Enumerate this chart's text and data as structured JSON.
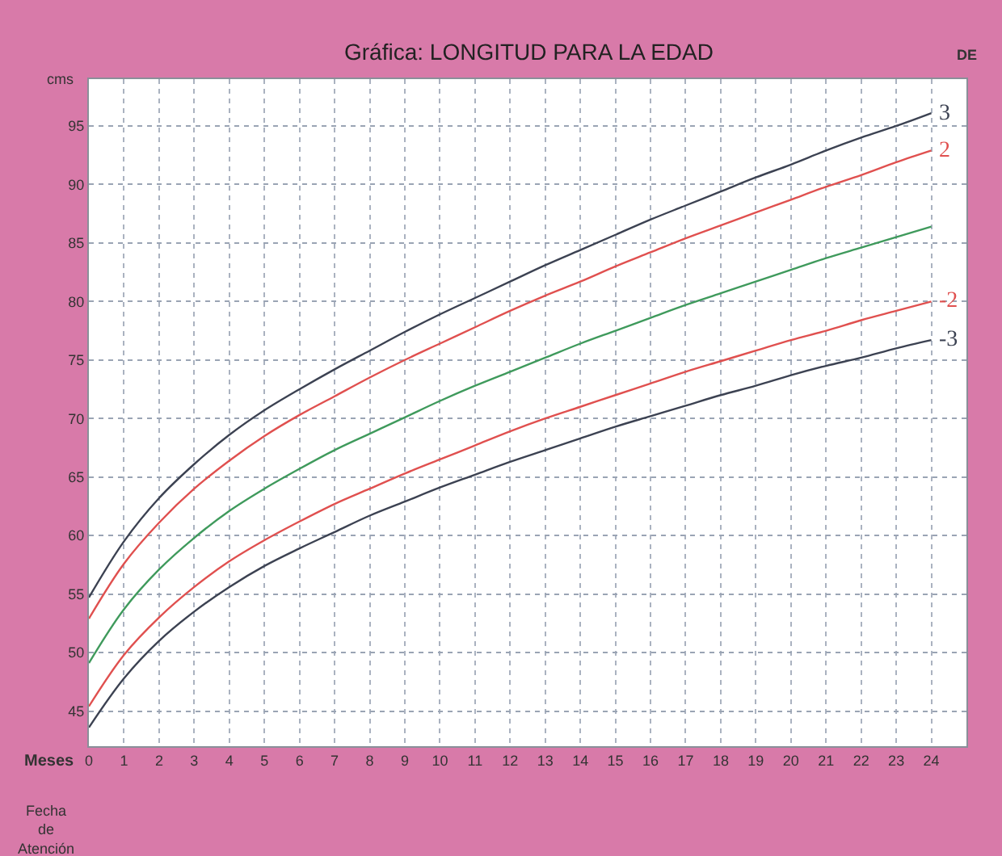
{
  "chart_data": {
    "type": "line",
    "title": "Gráfica: LONGITUD PARA LA EDAD",
    "xlabel": "Meses",
    "ylabel": "cms",
    "legend_title": "DE",
    "x": [
      0,
      1,
      2,
      3,
      4,
      5,
      6,
      7,
      8,
      9,
      10,
      11,
      12,
      13,
      14,
      15,
      16,
      17,
      18,
      19,
      20,
      21,
      22,
      23,
      24
    ],
    "series": [
      {
        "name": "3",
        "color": "#3c4252",
        "values": [
          54.7,
          59.5,
          63.2,
          66.1,
          68.6,
          70.7,
          72.5,
          74.2,
          75.8,
          77.4,
          78.9,
          80.3,
          81.7,
          83.1,
          84.4,
          85.7,
          87.0,
          88.2,
          89.4,
          90.6,
          91.7,
          92.9,
          94.0,
          95.0,
          96.1
        ]
      },
      {
        "name": "2",
        "color": "#e0504f",
        "values": [
          52.9,
          57.6,
          61.1,
          64.0,
          66.4,
          68.5,
          70.3,
          71.9,
          73.5,
          75.0,
          76.4,
          77.8,
          79.2,
          80.5,
          81.7,
          83.0,
          84.2,
          85.4,
          86.5,
          87.6,
          88.7,
          89.8,
          90.8,
          91.9,
          92.9
        ]
      },
      {
        "color": "#3f9a5c",
        "values": [
          49.1,
          53.7,
          57.1,
          59.8,
          62.1,
          64.0,
          65.7,
          67.3,
          68.7,
          70.1,
          71.5,
          72.8,
          74.0,
          75.2,
          76.4,
          77.5,
          78.6,
          79.7,
          80.7,
          81.7,
          82.7,
          83.7,
          84.6,
          85.5,
          86.4
        ]
      },
      {
        "name": "-2",
        "color": "#e0504f",
        "values": [
          45.4,
          49.8,
          53.0,
          55.6,
          57.8,
          59.6,
          61.2,
          62.7,
          64.0,
          65.3,
          66.5,
          67.7,
          68.9,
          70.0,
          71.0,
          72.0,
          73.0,
          74.0,
          74.9,
          75.8,
          76.7,
          77.5,
          78.4,
          79.2,
          80.0
        ]
      },
      {
        "name": "-3",
        "color": "#3c4252",
        "values": [
          43.6,
          47.8,
          51.0,
          53.5,
          55.6,
          57.4,
          58.9,
          60.3,
          61.7,
          62.9,
          64.1,
          65.2,
          66.3,
          67.3,
          68.3,
          69.3,
          70.2,
          71.1,
          72.0,
          72.8,
          73.7,
          74.5,
          75.2,
          76.0,
          76.7
        ]
      }
    ],
    "xlim": [
      0,
      25
    ],
    "xticks": [
      0,
      1,
      2,
      3,
      4,
      5,
      6,
      7,
      8,
      9,
      10,
      11,
      12,
      13,
      14,
      15,
      16,
      17,
      18,
      19,
      20,
      21,
      22,
      23,
      24
    ],
    "ylim": [
      42,
      99
    ],
    "yticks": [
      45,
      50,
      55,
      60,
      65,
      70,
      75,
      80,
      85,
      90,
      95
    ],
    "grid": true,
    "legend": "right",
    "marker": "none",
    "line_style": "solid",
    "annotations": [
      "Fecha de Atención"
    ]
  }
}
